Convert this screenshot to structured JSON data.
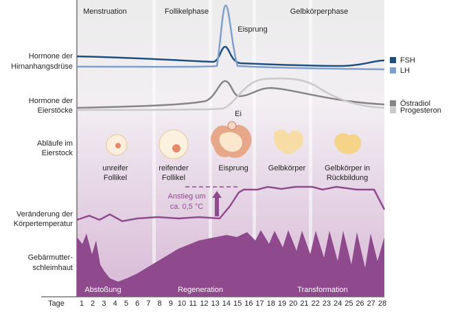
{
  "phases": [
    "Menstruation",
    "Follikelphase",
    "Gelbkörperphase"
  ],
  "rows": [
    {
      "label": [
        "Hormone der",
        "Hirnanhangsdrüse"
      ]
    },
    {
      "label": [
        "Hormone der",
        "Eierstöcke"
      ]
    },
    {
      "label": [
        "Abläufe im",
        "Eierstock"
      ]
    },
    {
      "label": [
        "Veränderung der",
        "Körpertemperatur"
      ]
    },
    {
      "label": [
        "Gebärmutter-",
        "schleimhaut"
      ]
    }
  ],
  "legend": [
    {
      "name": "FSH",
      "color": "#1d4e7e"
    },
    {
      "name": "LH",
      "color": "#7f9fcc"
    },
    {
      "name": "Östradiol",
      "color": "#858585"
    },
    {
      "name": "Progesteron",
      "color": "#c9c9c9"
    }
  ],
  "ovulation_label": "Eisprung",
  "egg_label": "Ei",
  "stages": [
    [
      "unreifer",
      "Follikel"
    ],
    [
      "reifender",
      "Follikel"
    ],
    [
      "Eisprung"
    ],
    [
      "Gelbkörper"
    ],
    [
      "Gelbkörper in",
      "Rückbildung"
    ]
  ],
  "temperature_note": [
    "Anstieg um",
    "ca. 0,5 °C"
  ],
  "endometrium_phases": [
    "Abstoßung",
    "Regeneration",
    "Transformation"
  ],
  "axis": {
    "label": "Tage",
    "days": [
      1,
      2,
      3,
      4,
      5,
      6,
      7,
      8,
      9,
      10,
      11,
      12,
      13,
      14,
      15,
      16,
      17,
      18,
      19,
      20,
      21,
      22,
      23,
      24,
      25,
      26,
      27,
      28
    ]
  }
}
